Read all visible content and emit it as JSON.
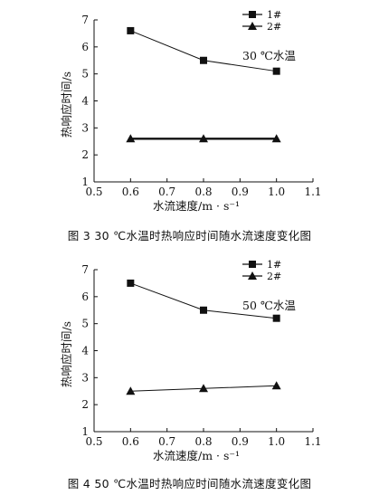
{
  "chart_data": [
    {
      "type": "line",
      "x": [
        0.6,
        0.8,
        1.0
      ],
      "series": [
        {
          "name": "1#",
          "values": [
            6.6,
            5.5,
            5.1
          ],
          "marker": "square"
        },
        {
          "name": "2#",
          "values": [
            2.6,
            2.6,
            2.6
          ],
          "marker": "triangle"
        }
      ],
      "annotation": "30 ℃水温",
      "xlabel": "水流速度/m · s⁻¹",
      "ylabel": "热响应时间/s",
      "xlim": [
        0.5,
        1.1
      ],
      "ylim": [
        1,
        7
      ],
      "xticks": [
        "0.5",
        "0.6",
        "0.7",
        "0.8",
        "0.9",
        "1.0",
        "1.1"
      ],
      "yticks": [
        "1",
        "2",
        "3",
        "4",
        "5",
        "6",
        "7"
      ],
      "legend_position": "top-right",
      "grid": false,
      "caption": "图 3   30 ℃水温时热响应时间随水流速度变化图"
    },
    {
      "type": "line",
      "x": [
        0.6,
        0.8,
        1.0
      ],
      "series": [
        {
          "name": "1#",
          "values": [
            6.5,
            5.5,
            5.2
          ],
          "marker": "square"
        },
        {
          "name": "2#",
          "values": [
            2.5,
            2.6,
            2.7
          ],
          "marker": "triangle"
        }
      ],
      "annotation": "50 ℃水温",
      "xlabel": "水流速度/m · s⁻¹",
      "ylabel": "热响应时间/s",
      "xlim": [
        0.5,
        1.1
      ],
      "ylim": [
        1,
        7
      ],
      "xticks": [
        "0.5",
        "0.6",
        "0.7",
        "0.8",
        "0.9",
        "1.0",
        "1.1"
      ],
      "yticks": [
        "1",
        "2",
        "3",
        "4",
        "5",
        "6",
        "7"
      ],
      "legend_position": "top-right",
      "grid": false,
      "caption": "图 4   50 ℃水温时热响应时间随水流速度变化图"
    }
  ],
  "styles": {
    "line_color": "#111111",
    "background": "#ffffff"
  }
}
